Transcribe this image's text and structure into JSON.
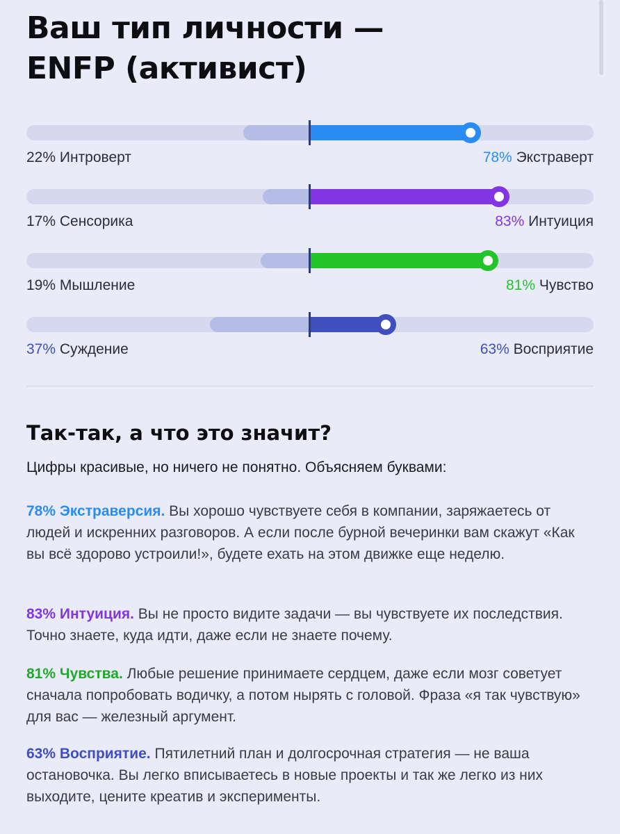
{
  "title_lines": [
    "Ваш тип личности —",
    "ENFP (активист)"
  ],
  "scales": [
    {
      "left_pct": "22%",
      "left_name": "Интроверт",
      "right_pct": "78%",
      "right_name": "Экстраверт",
      "value": 78,
      "color": "#2a8cf2",
      "emphasis": "right"
    },
    {
      "left_pct": "17%",
      "left_name": "Сенсорика",
      "right_pct": "83%",
      "right_name": "Интуиция",
      "value": 83,
      "color": "#8236e3",
      "emphasis": "right"
    },
    {
      "left_pct": "19%",
      "left_name": "Мышление",
      "right_pct": "81%",
      "right_name": "Чувство",
      "value": 81,
      "color": "#22c42a",
      "emphasis": "right"
    },
    {
      "left_pct": "37%",
      "left_name": "Суждение",
      "right_pct": "63%",
      "right_name": "Восприятие",
      "value": 63,
      "color": "#3f4fbd",
      "emphasis": "both"
    }
  ],
  "section": {
    "heading": "Так-так, а что это значит?",
    "lead": "Цифры красивые, но ничего не понятно. Объясняем буквами:"
  },
  "paragraphs": [
    {
      "term": "78% Экстраверсия.",
      "color": "#2a8cf2",
      "text": "Вы хорошо чувствуете себя в компании, заряжаетесь от людей и искренних разговоров. А если после бурной вечеринки вам скажут «Как вы всё здорово устроили!», будете ехать на этом движке еще неделю."
    },
    {
      "term": "83% Интуиция.",
      "color": "#8236e3",
      "text": "Вы не просто видите задачи — вы чувствуете их последствия. Точно знаете, куда идти, даже если не знаете почему."
    },
    {
      "term": "81% Чувства.",
      "color": "#22a829",
      "text": "Любые решение принимаете сердцем, даже если мозг советует сначала попробовать водичку, а потом нырять с головой. Фраза «я так чувствую» для вас — железный аргумент."
    },
    {
      "term": "63% Восприятие.",
      "color": "#3f4fbd",
      "text": "Пятилетний план и долгосрочная стратегия — не ваша остановочка. Вы легко вписываетесь в новые проекты и так же легко из них выходите, цените креатив и эксперименты."
    }
  ]
}
